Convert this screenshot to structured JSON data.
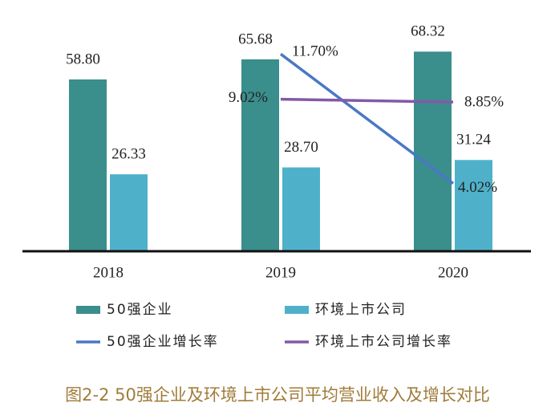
{
  "chart_data": {
    "type": "bar_line",
    "categories": [
      "2018",
      "2019",
      "2020"
    ],
    "series": [
      {
        "name": "50强企业",
        "type": "bar",
        "color": "#3a8e8c",
        "values": [
          58.8,
          65.68,
          68.32
        ],
        "value_labels": [
          "58.80",
          "65.68",
          "68.32"
        ]
      },
      {
        "name": "环境上市公司",
        "type": "bar",
        "color": "#4fb1c9",
        "values": [
          26.33,
          28.7,
          31.24
        ],
        "value_labels": [
          "26.33",
          "28.70",
          "31.24"
        ]
      },
      {
        "name": "50强企业增长率",
        "type": "line",
        "axis": "y2",
        "color": "#4a78c6",
        "values": [
          null,
          11.7,
          4.02
        ],
        "value_labels": [
          null,
          "11.70%",
          "4.02%"
        ]
      },
      {
        "name": "环境上市公司增长率",
        "type": "line",
        "axis": "y2",
        "color": "#8459a6",
        "values": [
          null,
          9.02,
          8.85
        ],
        "value_labels": [
          null,
          "9.02%",
          "8.85%"
        ]
      }
    ],
    "ylim": [
      0,
      75
    ],
    "y2lim": [
      0,
      13
    ],
    "caption": "图2-2 50强企业及环境上市公司平均营业收入及增长对比"
  }
}
